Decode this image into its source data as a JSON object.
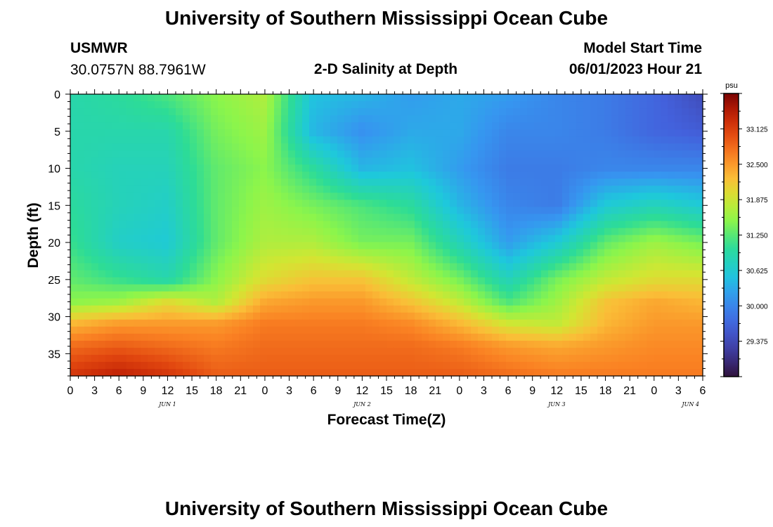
{
  "header": {
    "title": "University of Southern Mississippi Ocean Cube",
    "station": "USMWR",
    "coords": "30.0757N  88.7961W",
    "subtitle": "2-D Salinity at Depth",
    "start_label": "Model Start Time",
    "start_value": "06/01/2023 Hour 21"
  },
  "footer": {
    "title": "University of Southern Mississippi Ocean Cube"
  },
  "colors": {
    "background": "#ffffff",
    "axis": "#000000"
  },
  "chart_data": {
    "type": "heatmap",
    "title": "2-D Salinity at Depth",
    "xlabel": "Forecast Time(Z)",
    "ylabel": "Depth (ft)",
    "x_range_hours": [
      0,
      78
    ],
    "xticks": [
      {
        "h": 0,
        "label": "0"
      },
      {
        "h": 3,
        "label": "3"
      },
      {
        "h": 6,
        "label": "6"
      },
      {
        "h": 9,
        "label": "9"
      },
      {
        "h": 12,
        "label": "12"
      },
      {
        "h": 15,
        "label": "15"
      },
      {
        "h": 18,
        "label": "18"
      },
      {
        "h": 21,
        "label": "21"
      },
      {
        "h": 24,
        "label": "0"
      },
      {
        "h": 27,
        "label": "3"
      },
      {
        "h": 30,
        "label": "6"
      },
      {
        "h": 33,
        "label": "9"
      },
      {
        "h": 36,
        "label": "12"
      },
      {
        "h": 39,
        "label": "15"
      },
      {
        "h": 42,
        "label": "18"
      },
      {
        "h": 45,
        "label": "21"
      },
      {
        "h": 48,
        "label": "0"
      },
      {
        "h": 51,
        "label": "3"
      },
      {
        "h": 54,
        "label": "6"
      },
      {
        "h": 57,
        "label": "9"
      },
      {
        "h": 60,
        "label": "12"
      },
      {
        "h": 63,
        "label": "15"
      },
      {
        "h": 66,
        "label": "18"
      },
      {
        "h": 69,
        "label": "21"
      },
      {
        "h": 72,
        "label": "0"
      },
      {
        "h": 75,
        "label": "3"
      },
      {
        "h": 78,
        "label": "6"
      }
    ],
    "date_labels": [
      {
        "h": 12,
        "label": "JUN 1"
      },
      {
        "h": 36,
        "label": "JUN 2"
      },
      {
        "h": 60,
        "label": "JUN 3"
      },
      {
        "h": 76.5,
        "label": "JUN 4"
      }
    ],
    "ylim": [
      0,
      38
    ],
    "yticks": [
      0,
      5,
      10,
      15,
      20,
      25,
      30,
      35
    ],
    "colorbar": {
      "units": "psu",
      "range": [
        28.75,
        33.75
      ],
      "ticks": [
        "33.125",
        "32.500",
        "31.875",
        "31.250",
        "30.625",
        "30.000",
        "29.375"
      ]
    },
    "grid_columns_hours": [
      0,
      6,
      12,
      18,
      24,
      30,
      36,
      42,
      48,
      54,
      60,
      66,
      72,
      78
    ],
    "grid_rows_depth_ft": [
      0,
      5,
      10,
      15,
      20,
      25,
      28,
      31,
      34,
      38
    ],
    "salinity_psu": [
      [
        30.9,
        31.0,
        31.2,
        31.5,
        31.7,
        30.5,
        30.4,
        30.2,
        30.3,
        30.2,
        30.0,
        29.9,
        29.7,
        29.4
      ],
      [
        30.9,
        30.9,
        30.9,
        31.4,
        31.6,
        30.4,
        30.1,
        30.3,
        30.3,
        30.0,
        30.0,
        29.9,
        29.7,
        29.6
      ],
      [
        30.9,
        30.8,
        30.8,
        31.3,
        31.5,
        31.0,
        30.4,
        30.5,
        30.2,
        29.9,
        29.9,
        30.0,
        30.0,
        30.0
      ],
      [
        31.0,
        30.8,
        30.7,
        31.3,
        31.6,
        31.4,
        31.2,
        31.0,
        30.4,
        30.0,
        29.9,
        30.6,
        30.8,
        30.6
      ],
      [
        31.1,
        30.7,
        30.6,
        31.3,
        31.7,
        31.7,
        31.4,
        31.4,
        30.8,
        30.2,
        30.6,
        31.3,
        31.6,
        31.4
      ],
      [
        31.3,
        31.1,
        30.9,
        31.5,
        32.0,
        32.2,
        32.2,
        31.8,
        31.4,
        30.8,
        31.4,
        31.8,
        32.0,
        32.0
      ],
      [
        31.5,
        31.6,
        32.0,
        31.7,
        32.4,
        32.5,
        32.5,
        32.2,
        31.8,
        31.2,
        31.6,
        32.2,
        32.4,
        32.3
      ],
      [
        32.3,
        32.5,
        32.5,
        32.5,
        32.7,
        32.7,
        32.7,
        32.6,
        32.3,
        31.9,
        31.8,
        32.3,
        32.5,
        32.5
      ],
      [
        32.8,
        32.9,
        32.8,
        32.7,
        32.8,
        32.8,
        32.8,
        32.8,
        32.7,
        32.5,
        32.4,
        32.5,
        32.6,
        32.6
      ],
      [
        33.2,
        33.4,
        33.2,
        32.9,
        32.9,
        32.9,
        32.9,
        32.9,
        32.9,
        32.8,
        32.7,
        32.7,
        32.7,
        32.7
      ]
    ]
  }
}
